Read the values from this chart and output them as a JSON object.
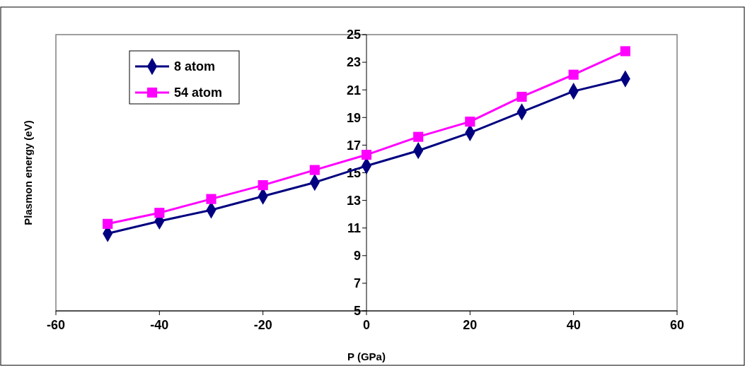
{
  "chart_data": {
    "type": "line",
    "xlabel": "P (GPa)",
    "ylabel": "Plasmon energy (eV)",
    "x": [
      -50,
      -40,
      -30,
      -20,
      -10,
      0,
      10,
      20,
      30,
      40,
      50
    ],
    "series": [
      {
        "name": "8 atom",
        "color": "#000080",
        "marker": "diamond",
        "values": [
          10.6,
          11.5,
          12.3,
          13.3,
          14.3,
          15.5,
          16.6,
          17.9,
          19.4,
          20.9,
          21.8
        ]
      },
      {
        "name": "54 atom",
        "color": "#ff00ff",
        "marker": "square",
        "values": [
          11.3,
          12.1,
          13.1,
          14.1,
          15.2,
          16.3,
          17.6,
          18.7,
          20.5,
          22.1,
          23.8
        ]
      }
    ],
    "xlim": [
      -60,
      60
    ],
    "xticks": [
      -60,
      -40,
      -20,
      0,
      20,
      40,
      60
    ],
    "ylim": [
      5,
      25
    ],
    "yticks": [
      5,
      7,
      9,
      11,
      13,
      15,
      17,
      19,
      21,
      23,
      25
    ],
    "grid": false,
    "legend": "top left",
    "line_style": "solid"
  }
}
